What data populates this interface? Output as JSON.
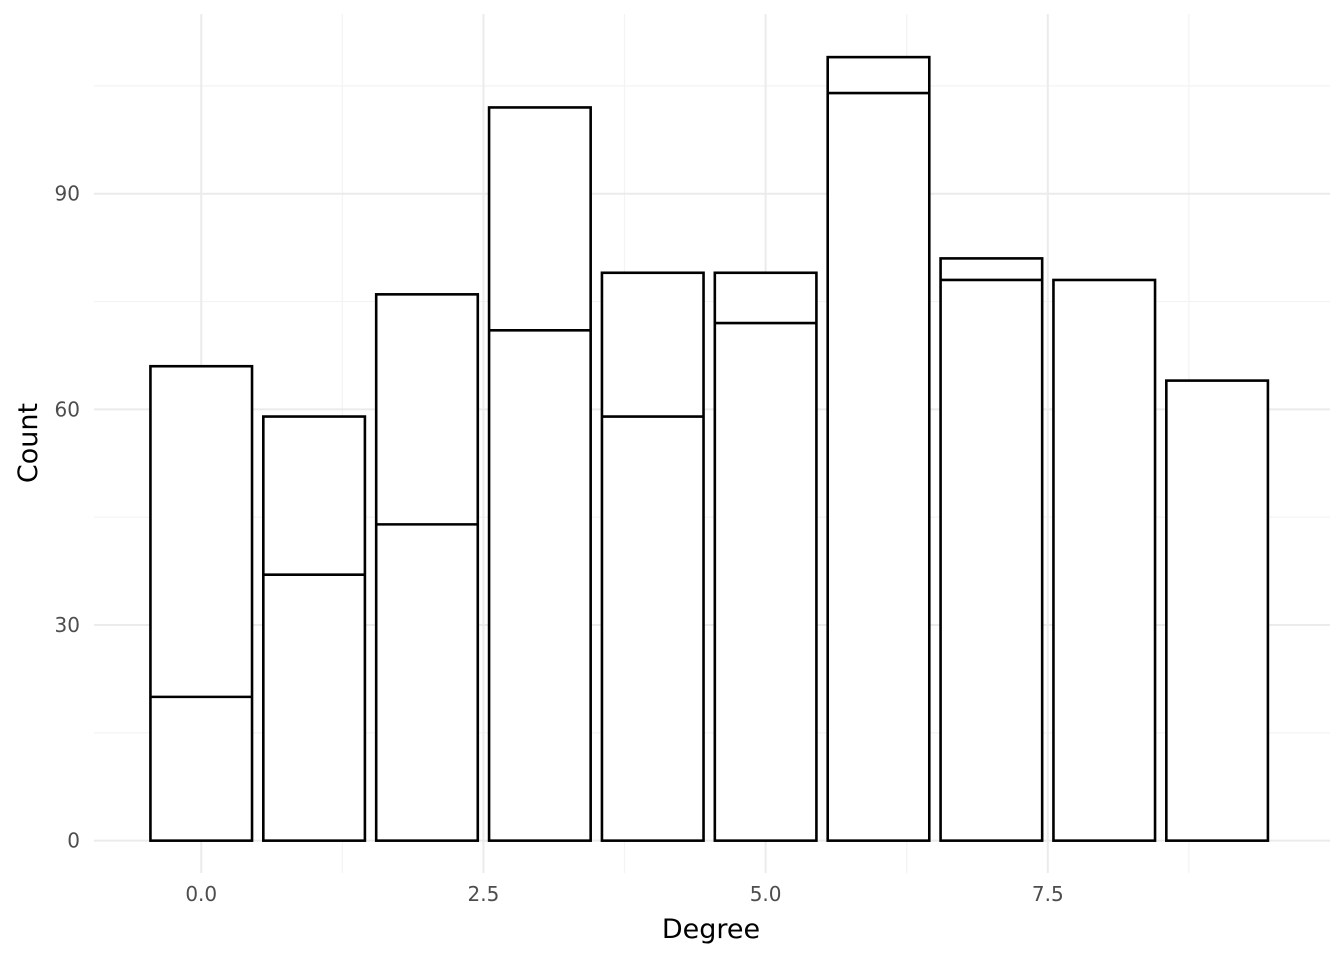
{
  "chart_data": {
    "type": "bar",
    "stacked": true,
    "xlabel": "Degree",
    "ylabel": "Count",
    "x": [
      0,
      1,
      2,
      3,
      4,
      5,
      6,
      7,
      8,
      9
    ],
    "bottom_segment": [
      20,
      37,
      44,
      71,
      59,
      72,
      104,
      78,
      null,
      null
    ],
    "totals": [
      66,
      59,
      76,
      102,
      79,
      79,
      109,
      81,
      78,
      64
    ],
    "xlim": [
      -0.95,
      10.0
    ],
    "ylim": [
      -4.5,
      115
    ],
    "x_ticks": [
      0.0,
      2.5,
      5.0,
      7.5
    ],
    "x_tick_labels": [
      "0.0",
      "2.5",
      "5.0",
      "7.5"
    ],
    "y_ticks": [
      0,
      30,
      60,
      90
    ],
    "y_tick_labels": [
      "0",
      "30",
      "60",
      "90"
    ],
    "grid": true,
    "legend": "none",
    "colors": {
      "bar_fill": "#ffffff",
      "bar_outline": "#000000",
      "grid": "#ebebeb",
      "tick_text": "#4d4d4d"
    }
  }
}
